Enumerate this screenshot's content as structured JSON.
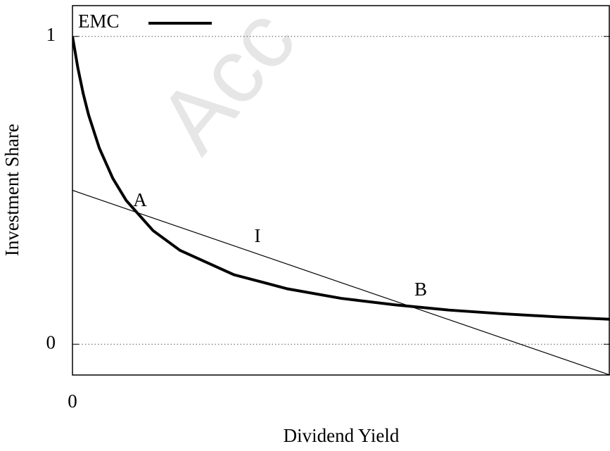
{
  "chart_data": {
    "type": "line",
    "xlabel": "Dividend Yield",
    "ylabel": "Investment Share",
    "xlim": [
      0,
      1
    ],
    "ylim": [
      -0.1,
      1.1
    ],
    "xticks": [
      0
    ],
    "yticks": [
      0,
      1
    ],
    "grid": true,
    "legend": "top-left",
    "watermark": "Acc",
    "annotations": [
      "A",
      "I",
      "B"
    ],
    "series": [
      {
        "name": "EMC",
        "color": "#000000",
        "x": [
          0,
          0.01,
          0.02,
          0.03,
          0.05,
          0.075,
          0.1,
          0.15,
          0.2,
          0.3,
          0.4,
          0.5,
          0.6,
          0.7,
          0.8,
          0.9,
          1.0
        ],
        "values": [
          1,
          0.898,
          0.814,
          0.745,
          0.637,
          0.539,
          0.467,
          0.369,
          0.305,
          0.226,
          0.18,
          0.149,
          0.128,
          0.111,
          0.099,
          0.089,
          0.081
        ]
      },
      {
        "color": "#000000",
        "x": [
          0,
          1
        ],
        "values": [
          0.5,
          -0.1
        ]
      }
    ]
  }
}
